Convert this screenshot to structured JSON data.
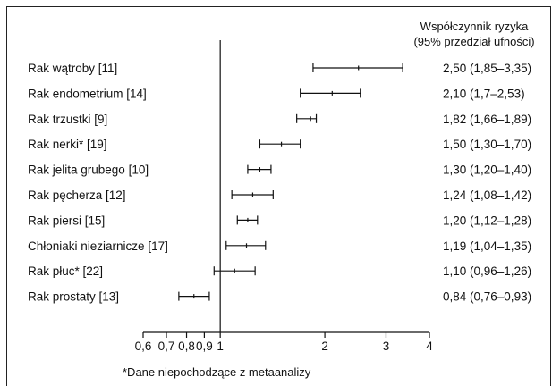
{
  "chart_data": {
    "type": "forest",
    "x_scale": "log",
    "xlim": [
      0.6,
      4
    ],
    "reference_line": 1,
    "x_ticks": [
      {
        "value": 0.6,
        "label": "0,6"
      },
      {
        "value": 0.7,
        "label": "0,7"
      },
      {
        "value": 0.8,
        "label": "0,8"
      },
      {
        "value": 0.9,
        "label": "0,9"
      },
      {
        "value": 1,
        "label": "1"
      },
      {
        "value": 2,
        "label": "2"
      },
      {
        "value": 3,
        "label": "3"
      },
      {
        "value": 4,
        "label": "4"
      }
    ],
    "header_line1": "Współczynnik ryzyka",
    "header_line2": "(95% przedział ufności)",
    "footnote": "*Dane niepochodzące z metaanalizy",
    "rows": [
      {
        "label": "Rak wątroby [11]",
        "est": 2.5,
        "lo": 1.85,
        "hi": 3.35,
        "ci_text": "2,50 (1,85–3,35)"
      },
      {
        "label": "Rak endometrium [14]",
        "est": 2.1,
        "lo": 1.7,
        "hi": 2.53,
        "ci_text": "2,10 (1,7–2,53)"
      },
      {
        "label": "Rak trzustki [9]",
        "est": 1.82,
        "lo": 1.66,
        "hi": 1.89,
        "ci_text": "1,82 (1,66–1,89)"
      },
      {
        "label": "Rak nerki* [19]",
        "est": 1.5,
        "lo": 1.3,
        "hi": 1.7,
        "ci_text": "1,50 (1,30–1,70)"
      },
      {
        "label": "Rak jelita grubego [10]",
        "est": 1.3,
        "lo": 1.2,
        "hi": 1.4,
        "ci_text": "1,30 (1,20–1,40)"
      },
      {
        "label": "Rak pęcherza [12]",
        "est": 1.24,
        "lo": 1.08,
        "hi": 1.42,
        "ci_text": "1,24 (1,08–1,42)"
      },
      {
        "label": "Rak piersi [15]",
        "est": 1.2,
        "lo": 1.12,
        "hi": 1.28,
        "ci_text": "1,20 (1,12–1,28)"
      },
      {
        "label": "Chłoniaki nieziarnicze [17]",
        "est": 1.19,
        "lo": 1.04,
        "hi": 1.35,
        "ci_text": "1,19 (1,04–1,35)"
      },
      {
        "label": "Rak płuc* [22]",
        "est": 1.1,
        "lo": 0.96,
        "hi": 1.26,
        "ci_text": "1,10 (0,96–1,26)"
      },
      {
        "label": "Rak prostaty [13]",
        "est": 0.84,
        "lo": 0.76,
        "hi": 0.93,
        "ci_text": "0,84 (0,76–0,93)"
      }
    ]
  }
}
